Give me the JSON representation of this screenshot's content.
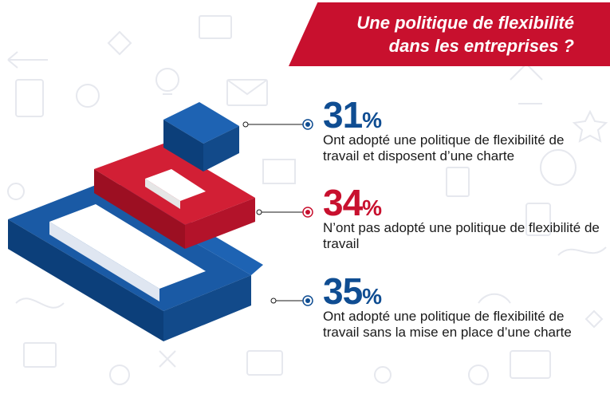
{
  "title": {
    "line1": "Une politique de flexibilité",
    "line2": "dans les entreprises ?"
  },
  "colors": {
    "blue": "#0f4d92",
    "red": "#c8102e",
    "text": "#1a1a1a"
  },
  "chart_data": {
    "type": "infographic",
    "unit": "%",
    "items": [
      {
        "value": 31,
        "unit": "%",
        "label": "Ont adopté une politique de flexibilité de travail et disposent d’une charte",
        "color": "#0f4d92"
      },
      {
        "value": 34,
        "unit": "%",
        "label": "N’ont pas adopté une politique de flexibilité de travail",
        "color": "#c8102e"
      },
      {
        "value": 35,
        "unit": "%",
        "label": "Ont adopté une politique de flexibilité de travail sans la mise en place d’une charte",
        "color": "#0f4d92"
      }
    ]
  }
}
